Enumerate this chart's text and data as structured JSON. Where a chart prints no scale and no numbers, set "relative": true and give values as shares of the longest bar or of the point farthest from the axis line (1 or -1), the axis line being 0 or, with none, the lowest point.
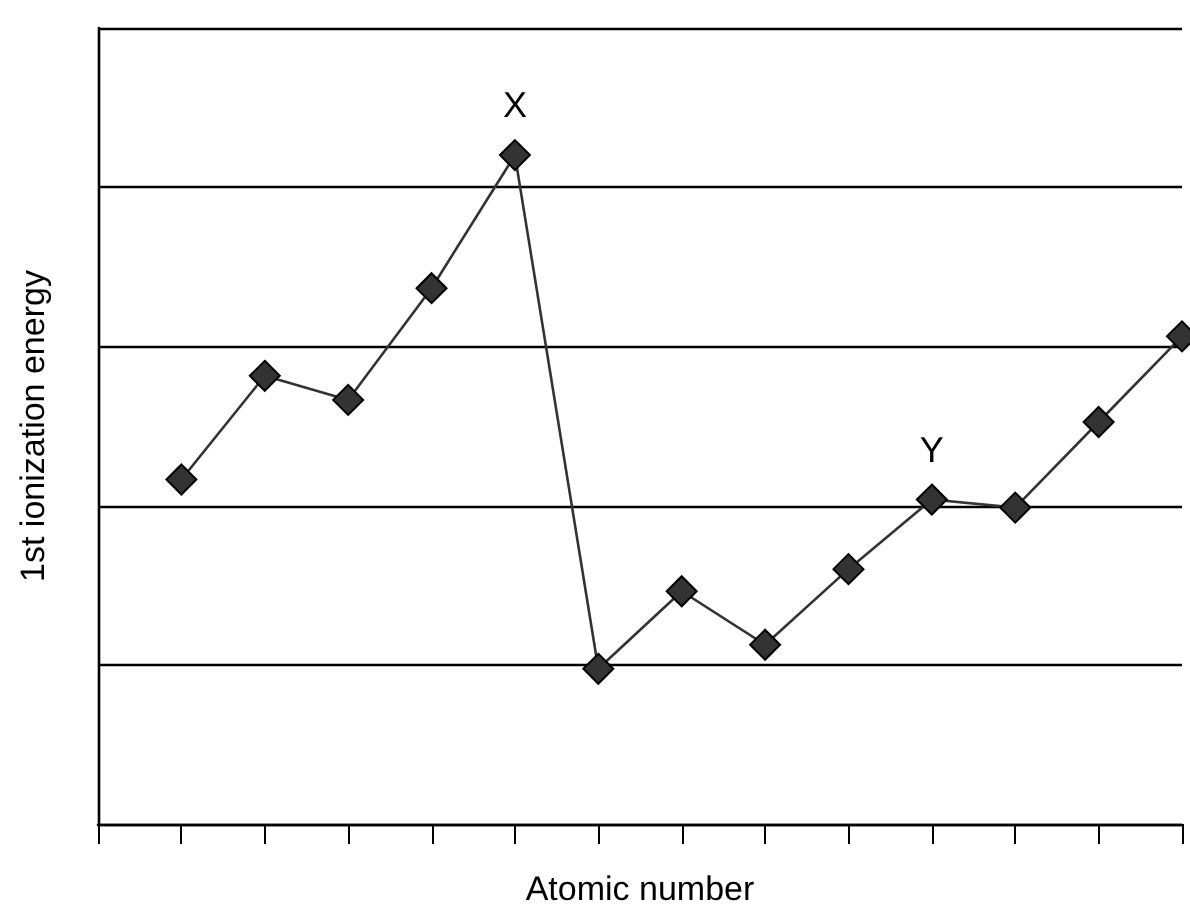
{
  "chart_data": {
    "type": "line",
    "xlabel": "Atomic number",
    "ylabel": "1st ionization energy",
    "relative": true,
    "categories": [
      null,
      null,
      null,
      null,
      null,
      null,
      null,
      null,
      null,
      null,
      null,
      null,
      null,
      null
    ],
    "series": [
      {
        "color": "#333333",
        "values": [
          null,
          0.515,
          0.67,
          0.634,
          0.801,
          1,
          0.232,
          0.348,
          0.268,
          0.381,
          0.485,
          0.473,
          0.601,
          0.729
        ]
      }
    ],
    "annotations": [
      {
        "text": "X",
        "y": 1
      },
      {
        "text": "Y",
        "y": 0.485
      }
    ],
    "grid": "y",
    "marker": "diamond",
    "line_style": "solid"
  }
}
